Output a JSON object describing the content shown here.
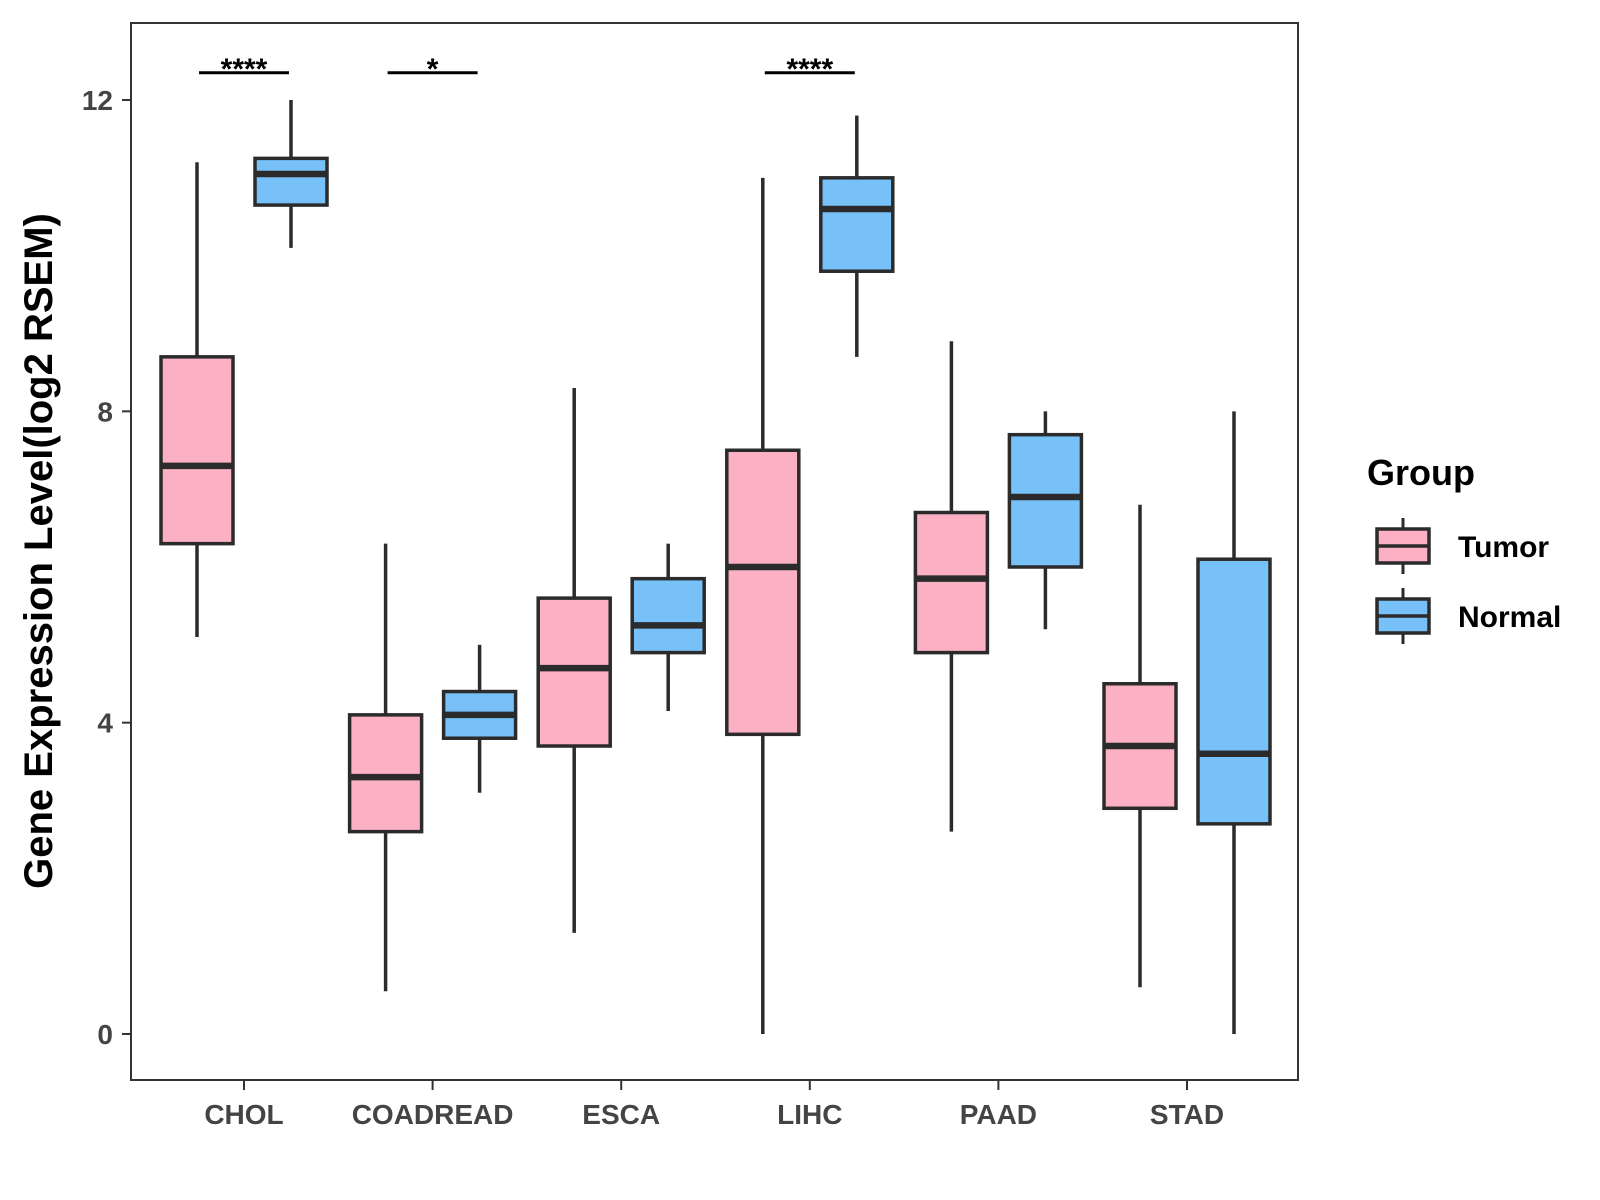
{
  "chart_data": {
    "type": "boxplot",
    "title": "",
    "xlabel": "",
    "ylabel": "Gene Expression Level(log2 RSEM)",
    "ylim": [
      -0.6,
      13
    ],
    "yticks": [
      0,
      4,
      8,
      12
    ],
    "grid": false,
    "legend": {
      "title": "Group",
      "position": "right"
    },
    "categories": [
      "CHOL",
      "COADREAD",
      "ESCA",
      "LIHC",
      "PAAD",
      "STAD"
    ],
    "series": [
      {
        "name": "Tumor",
        "color": "#FBB1C3",
        "boxes": [
          {
            "min": 5.1,
            "q1": 6.3,
            "median": 7.3,
            "q3": 8.7,
            "max": 11.2
          },
          {
            "min": 0.55,
            "q1": 2.6,
            "median": 3.3,
            "q3": 4.1,
            "max": 6.3
          },
          {
            "min": 1.3,
            "q1": 3.7,
            "median": 4.7,
            "q3": 5.6,
            "max": 8.3
          },
          {
            "min": 0.0,
            "q1": 3.85,
            "median": 6.0,
            "q3": 7.5,
            "max": 11.0
          },
          {
            "min": 2.6,
            "q1": 4.9,
            "median": 5.85,
            "q3": 6.7,
            "max": 8.9
          },
          {
            "min": 0.6,
            "q1": 2.9,
            "median": 3.7,
            "q3": 4.5,
            "max": 6.8
          }
        ]
      },
      {
        "name": "Normal",
        "color": "#77C1F8",
        "boxes": [
          {
            "min": 10.1,
            "q1": 10.65,
            "median": 11.05,
            "q3": 11.25,
            "max": 12.0
          },
          {
            "min": 3.1,
            "q1": 3.8,
            "median": 4.1,
            "q3": 4.4,
            "max": 5.0
          },
          {
            "min": 4.15,
            "q1": 4.9,
            "median": 5.25,
            "q3": 5.85,
            "max": 6.3
          },
          {
            "min": 8.7,
            "q1": 9.8,
            "median": 10.6,
            "q3": 11.0,
            "max": 11.8
          },
          {
            "min": 5.2,
            "q1": 6.0,
            "median": 6.9,
            "q3": 7.7,
            "max": 8.0
          },
          {
            "min": 0.0,
            "q1": 2.7,
            "median": 3.6,
            "q3": 6.1,
            "max": 8.0
          }
        ]
      }
    ],
    "significance": [
      {
        "category": "CHOL",
        "label": "****"
      },
      {
        "category": "COADREAD",
        "label": "*"
      },
      {
        "category": "LIHC",
        "label": "****"
      }
    ],
    "significance_level": 12.35
  }
}
